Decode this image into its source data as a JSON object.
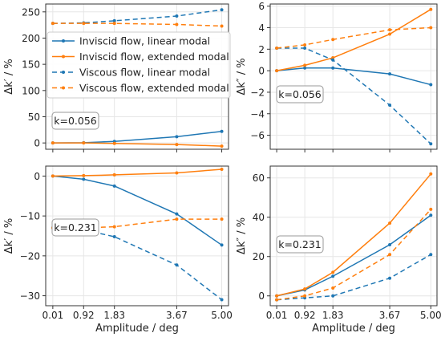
{
  "colors": {
    "inviscid": "#1f77b4",
    "viscous": "#ff7f0e",
    "frame": "#333333",
    "grid": "#e6e6e6"
  },
  "figure": {
    "xlabel": "Amplitude / deg",
    "ylabel_real": "Δk′ / %",
    "ylabel_imag": "Δk″ / %"
  },
  "legend": {
    "placement": "upper-left of top-left panel",
    "entries": [
      {
        "label": "Inviscid flow, linear modal",
        "color": "#1f77b4",
        "dashed": false,
        "marker": "dot"
      },
      {
        "label": "Inviscid flow, extended modal",
        "color": "#ff7f0e",
        "dashed": false,
        "marker": "dot"
      },
      {
        "label": "Viscous flow, linear modal",
        "color": "#1f77b4",
        "dashed": true,
        "marker": "dot"
      },
      {
        "label": "Viscous flow, extended modal",
        "color": "#ff7f0e",
        "dashed": true,
        "marker": "dot"
      }
    ]
  },
  "chart_data": [
    {
      "type": "line",
      "panel": "top-left",
      "annotation": "k=0.056",
      "xlabel": "",
      "ylabel": "Δk′ / %",
      "x": [
        0.01,
        0.92,
        1.83,
        3.67,
        5.0
      ],
      "xticklabels": [
        "0.01",
        "0.92",
        "1.83",
        "3.67",
        "5.00"
      ],
      "xlim": [
        -0.2,
        5.2
      ],
      "ylim": [
        -12,
        265
      ],
      "yticks": [
        0,
        50,
        100,
        150,
        200,
        250
      ],
      "grid": true,
      "series": [
        {
          "name": "Inviscid flow, linear modal",
          "values": [
            0,
            0.5,
            3,
            12,
            22
          ]
        },
        {
          "name": "Inviscid flow, extended modal",
          "values": [
            0,
            0,
            -1,
            -3,
            -6
          ]
        },
        {
          "name": "Viscous flow, linear modal",
          "values": [
            228,
            229,
            233,
            242,
            254
          ]
        },
        {
          "name": "Viscous flow, extended modal",
          "values": [
            228,
            228,
            228,
            226,
            223
          ]
        }
      ]
    },
    {
      "type": "line",
      "panel": "top-right",
      "annotation": "k=0.056",
      "xlabel": "",
      "ylabel": "Δk″ / %",
      "x": [
        0.01,
        0.92,
        1.83,
        3.67,
        5.0
      ],
      "xticklabels": [
        "0.01",
        "0.92",
        "1.83",
        "3.67",
        "5.00"
      ],
      "xlim": [
        -0.2,
        5.2
      ],
      "ylim": [
        -7.3,
        6.2
      ],
      "yticks": [
        -6,
        -4,
        -2,
        0,
        2,
        4,
        6
      ],
      "grid": true,
      "series": [
        {
          "name": "Inviscid flow, linear modal",
          "values": [
            0,
            0.25,
            0.25,
            -0.3,
            -1.3
          ]
        },
        {
          "name": "Inviscid flow, extended modal",
          "values": [
            0,
            0.5,
            1.2,
            3.4,
            5.7
          ]
        },
        {
          "name": "Viscous flow, linear modal",
          "values": [
            2.1,
            2.1,
            1.0,
            -3.2,
            -6.8
          ]
        },
        {
          "name": "Viscous flow, extended modal",
          "values": [
            2.1,
            2.4,
            2.9,
            3.8,
            4.0
          ]
        }
      ]
    },
    {
      "type": "line",
      "panel": "bottom-left",
      "annotation": "k=0.231",
      "xlabel": "Amplitude / deg",
      "ylabel": "Δk′ / %",
      "x": [
        0.01,
        0.92,
        1.83,
        3.67,
        5.0
      ],
      "xticklabels": [
        "0.01",
        "0.92",
        "1.83",
        "3.67",
        "5.00"
      ],
      "xlim": [
        -0.2,
        5.2
      ],
      "ylim": [
        -32.5,
        2.5
      ],
      "yticks": [
        -30,
        -20,
        -10,
        0
      ],
      "grid": true,
      "series": [
        {
          "name": "Inviscid flow, linear modal",
          "values": [
            0,
            -0.8,
            -2.5,
            -9.5,
            -17.3
          ]
        },
        {
          "name": "Inviscid flow, extended modal",
          "values": [
            0,
            0.1,
            0.3,
            0.8,
            1.7
          ]
        },
        {
          "name": "Viscous flow, linear modal",
          "values": [
            -13,
            -13.5,
            -15.2,
            -22.3,
            -31
          ]
        },
        {
          "name": "Viscous flow, extended modal",
          "values": [
            -13,
            -13,
            -12.7,
            -10.8,
            -10.8
          ]
        }
      ]
    },
    {
      "type": "line",
      "panel": "bottom-right",
      "annotation": "k=0.231",
      "xlabel": "Amplitude / deg",
      "ylabel": "Δk″ / %",
      "x": [
        0.01,
        0.92,
        1.83,
        3.67,
        5.0
      ],
      "xticklabels": [
        "0.01",
        "0.92",
        "1.83",
        "3.67",
        "5.00"
      ],
      "xlim": [
        -0.2,
        5.2
      ],
      "ylim": [
        -5,
        66
      ],
      "yticks": [
        0,
        20,
        40,
        60
      ],
      "grid": true,
      "series": [
        {
          "name": "Inviscid flow, linear modal",
          "values": [
            0,
            3,
            10,
            26,
            41
          ]
        },
        {
          "name": "Inviscid flow, extended modal",
          "values": [
            0,
            3.5,
            12,
            37,
            62
          ]
        },
        {
          "name": "Viscous flow, linear modal",
          "values": [
            -2,
            -1,
            0,
            9,
            21
          ]
        },
        {
          "name": "Viscous flow, extended modal",
          "values": [
            -2,
            0,
            4,
            21,
            44
          ]
        }
      ]
    }
  ]
}
